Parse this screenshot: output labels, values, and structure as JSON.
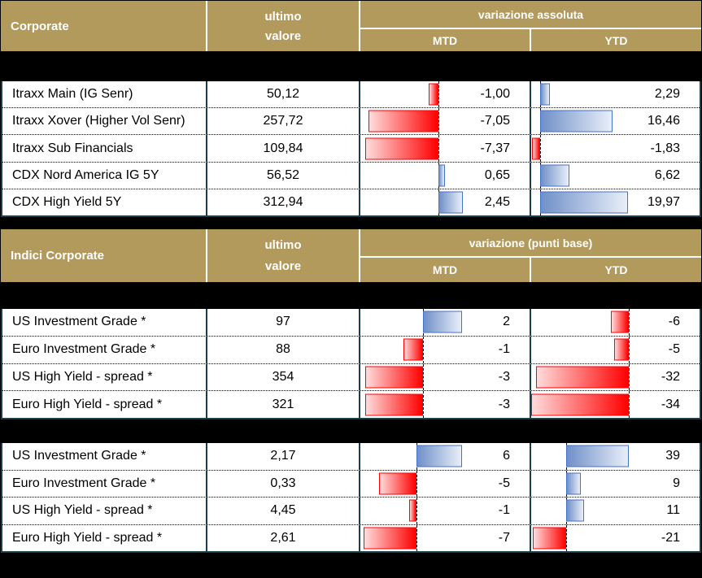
{
  "colors": {
    "background": "#000000",
    "header_gold": "#B2995C",
    "header_text": "#FFFFFF",
    "table_border": "#1B3E4D",
    "negative_bar_border": "#FF0000",
    "negative_bar_gradient": [
      "#FFDCDC",
      "#FF0000"
    ],
    "positive_bar_border": "#4472C4",
    "positive_bar_gradient": [
      "#7090C8",
      "#E9EFF9"
    ],
    "cell_background": "#FFFFFF",
    "body_text": "#000000"
  },
  "tables": [
    {
      "name": "corporate",
      "header": {
        "title": "Corporate",
        "value_line1": "ultimo",
        "value_line2": "valore",
        "group_label": "variazione assoluta",
        "mtd_label": "MTD",
        "ytd_label": "YTD"
      },
      "axes": {
        "mtd": {
          "zero_frac": 0.462,
          "unit_frac": 0.0586
        },
        "ytd": {
          "zero_frac": 0.052,
          "unit_frac": 0.0261
        }
      },
      "rows": [
        {
          "label": "Itraxx Main (IG Senr)",
          "value": "50,12",
          "mtd": -1.0,
          "mtd_text": "-1,00",
          "ytd": 2.29,
          "ytd_text": "2,29"
        },
        {
          "label": "Itraxx Xover (Higher Vol Senr)",
          "value": "257,72",
          "mtd": -7.05,
          "mtd_text": "-7,05",
          "ytd": 16.46,
          "ytd_text": "16,46"
        },
        {
          "label": "Itraxx Sub Financials",
          "value": "109,84",
          "mtd": -7.37,
          "mtd_text": "-7,37",
          "ytd": -1.83,
          "ytd_text": "-1,83"
        },
        {
          "label": "CDX Nord America IG 5Y",
          "value": "56,52",
          "mtd": 0.65,
          "mtd_text": "0,65",
          "ytd": 6.62,
          "ytd_text": "6,62"
        },
        {
          "label": "CDX High Yield 5Y",
          "value": "312,94",
          "mtd": 2.45,
          "mtd_text": "2,45",
          "ytd": 19.97,
          "ytd_text": "19,97"
        }
      ]
    },
    {
      "name": "indici-corporate-spread",
      "header": {
        "title": "Indici Corporate",
        "value_line1": "ultimo",
        "value_line2": "valore",
        "group_label": "variazione (punti base)",
        "mtd_label": "MTD",
        "ytd_label": "YTD"
      },
      "axes": {
        "mtd": {
          "zero_frac": 0.3714,
          "unit_frac": 0.1143
        },
        "ytd": {
          "zero_frac": 0.5782,
          "unit_frac": 0.0171
        }
      },
      "rows": [
        {
          "label": "US Investment Grade *",
          "value": "97",
          "mtd": 2,
          "mtd_text": "2",
          "ytd": -6,
          "ytd_text": "-6"
        },
        {
          "label": "Euro Investment Grade *",
          "value": "88",
          "mtd": -1,
          "mtd_text": "-1",
          "ytd": -5,
          "ytd_text": "-5"
        },
        {
          "label": "US High Yield  - spread *",
          "value": "354",
          "mtd": -3,
          "mtd_text": "-3",
          "ytd": -32,
          "ytd_text": "-32"
        },
        {
          "label": "Euro High Yield  - spread *",
          "value": "321",
          "mtd": -3,
          "mtd_text": "-3",
          "ytd": -34,
          "ytd_text": "-34"
        }
      ]
    },
    {
      "name": "indici-corporate-yield",
      "header": null,
      "axes": {
        "mtd": {
          "zero_frac": 0.3333,
          "unit_frac": 0.0448
        },
        "ytd": {
          "zero_frac": 0.2085,
          "unit_frac": 0.0095
        }
      },
      "rows": [
        {
          "label": "US Investment Grade *",
          "value": "2,17",
          "mtd": 6,
          "mtd_text": "6",
          "ytd": 39,
          "ytd_text": "39"
        },
        {
          "label": "Euro Investment Grade *",
          "value": "0,33",
          "mtd": -5,
          "mtd_text": "-5",
          "ytd": 9,
          "ytd_text": "9"
        },
        {
          "label": "US High Yield  - spread *",
          "value": "4,45",
          "mtd": -1,
          "mtd_text": "-1",
          "ytd": 11,
          "ytd_text": "11"
        },
        {
          "label": "Euro High Yield  - spread *",
          "value": "2,61",
          "mtd": -7,
          "mtd_text": "-7",
          "ytd": -21,
          "ytd_text": "-21"
        }
      ]
    }
  ],
  "chart_data": [
    {
      "type": "table",
      "title": "Corporate",
      "columns": [
        "ultimo valore",
        "variazione assoluta MTD",
        "variazione assoluta YTD"
      ],
      "categories": [
        "Itraxx Main (IG Senr)",
        "Itraxx Xover (Higher Vol Senr)",
        "Itraxx Sub Financials",
        "CDX Nord America IG 5Y",
        "CDX High Yield 5Y"
      ],
      "series": [
        {
          "name": "ultimo valore",
          "values": [
            50.12,
            257.72,
            109.84,
            56.52,
            312.94
          ]
        },
        {
          "name": "MTD",
          "values": [
            -1.0,
            -7.05,
            -7.37,
            0.65,
            2.45
          ]
        },
        {
          "name": "YTD",
          "values": [
            2.29,
            16.46,
            -1.83,
            6.62,
            19.97
          ]
        }
      ],
      "style_note": "inline horizontal data bars: negative = red gradient, positive = blue gradient, dashed zero baseline"
    },
    {
      "type": "table",
      "title": "Indici Corporate",
      "columns": [
        "ultimo valore",
        "variazione (punti base) MTD",
        "variazione (punti base) YTD"
      ],
      "categories": [
        "US Investment Grade *",
        "Euro Investment Grade *",
        "US High Yield - spread *",
        "Euro High Yield - spread *"
      ],
      "series": [
        {
          "name": "ultimo valore",
          "values": [
            97,
            88,
            354,
            321
          ]
        },
        {
          "name": "MTD",
          "values": [
            2,
            -1,
            -3,
            -3
          ]
        },
        {
          "name": "YTD",
          "values": [
            -6,
            -5,
            -32,
            -34
          ]
        }
      ]
    },
    {
      "type": "table",
      "title": "",
      "columns": [
        "ultimo valore",
        "MTD",
        "YTD"
      ],
      "categories": [
        "US Investment Grade *",
        "Euro Investment Grade *",
        "US High Yield - spread *",
        "Euro High Yield - spread *"
      ],
      "series": [
        {
          "name": "ultimo valore",
          "values": [
            2.17,
            0.33,
            4.45,
            2.61
          ]
        },
        {
          "name": "MTD",
          "values": [
            6,
            -5,
            -1,
            -7
          ]
        },
        {
          "name": "YTD",
          "values": [
            39,
            9,
            11,
            -21
          ]
        }
      ]
    }
  ]
}
